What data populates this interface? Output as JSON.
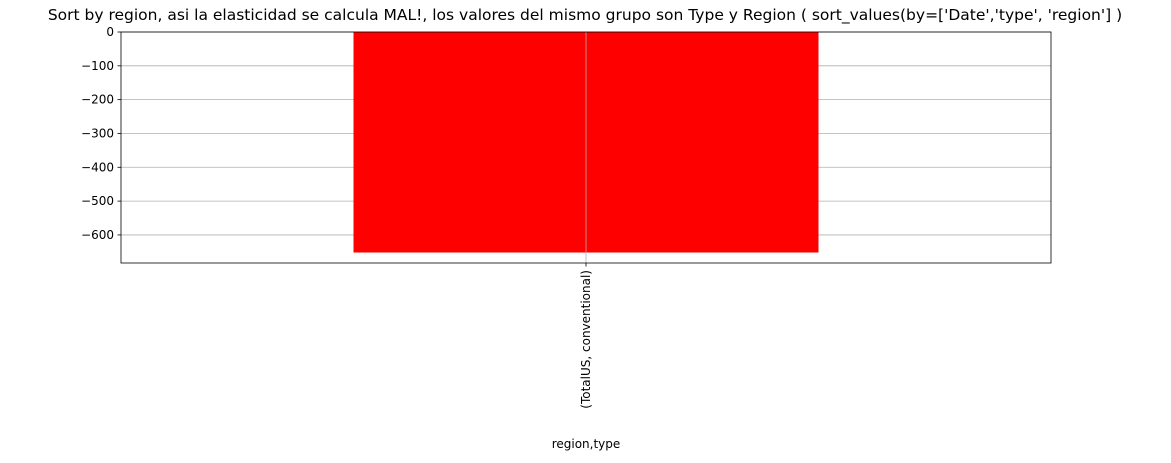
{
  "chart_data": {
    "type": "bar",
    "title": "Sort by region, asi la elasticidad se calcula MAL!, los valores del mismo grupo son Type y Region ( sort_values(by=['Date','type', 'region'] )",
    "xlabel": "region,type",
    "ylabel": "",
    "categories": [
      "(TotalUS, conventional)"
    ],
    "values": [
      -652
    ],
    "ylim": [
      -683,
      0
    ],
    "yticks": [
      0,
      -100,
      -200,
      -300,
      -400,
      -500,
      -600
    ],
    "ytick_labels": [
      "0",
      "−100",
      "−200",
      "−300",
      "−400",
      "−500",
      "−600"
    ],
    "bar_color": "#ff0000",
    "grid": true,
    "legend": "none"
  }
}
